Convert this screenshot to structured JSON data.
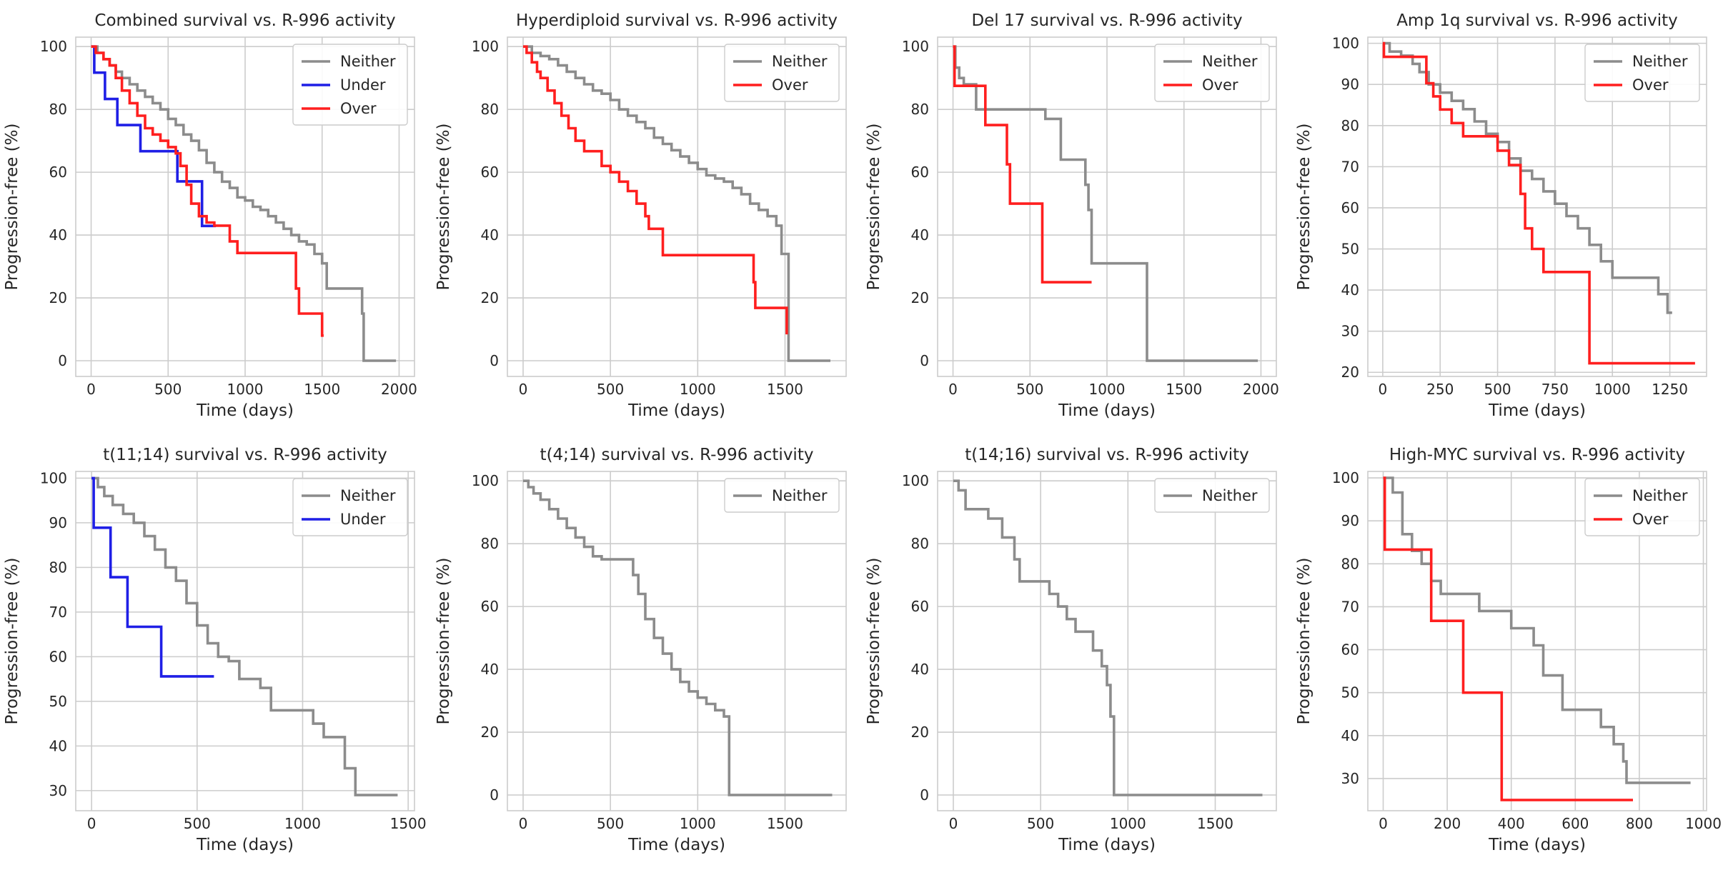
{
  "chart_data": [
    {
      "type": "line",
      "title": "Combined survival vs. R-996 activity",
      "xlabel": "Time (days)",
      "ylabel": "Progression-free (%)",
      "xlim": [
        -100,
        2100
      ],
      "ylim": [
        -5,
        103
      ],
      "xticks": [
        0,
        500,
        1000,
        1500,
        2000
      ],
      "yticks": [
        0,
        20,
        40,
        60,
        80,
        100
      ],
      "legend_position": "top-right",
      "series": [
        {
          "name": "Neither",
          "color": "#8c8c8c",
          "x": [
            0,
            40,
            80,
            120,
            160,
            200,
            250,
            300,
            350,
            400,
            450,
            500,
            550,
            600,
            650,
            700,
            750,
            800,
            850,
            900,
            950,
            1000,
            1050,
            1100,
            1150,
            1200,
            1250,
            1300,
            1350,
            1400,
            1450,
            1500,
            1530,
            1700,
            1760,
            1770,
            1980
          ],
          "y": [
            100,
            98,
            96,
            94,
            92,
            90,
            88,
            86,
            84,
            82,
            80,
            77,
            75,
            72,
            70,
            67,
            63,
            60,
            57,
            55,
            52,
            51,
            49,
            48,
            46,
            44,
            42,
            40,
            38,
            37,
            34,
            31,
            23,
            23,
            15,
            0,
            0
          ]
        },
        {
          "name": "Under",
          "color": "#1f1fe6",
          "x": [
            0,
            20,
            90,
            170,
            320,
            560,
            580,
            610,
            720,
            810
          ],
          "y": [
            100,
            91.7,
            83.3,
            75,
            66.7,
            57.1,
            57.1,
            57.1,
            42.9,
            42.9
          ]
        },
        {
          "name": "Over",
          "color": "#ff1f1f",
          "x": [
            0,
            30,
            80,
            120,
            160,
            200,
            250,
            300,
            350,
            400,
            450,
            500,
            550,
            580,
            620,
            650,
            700,
            750,
            800,
            850,
            900,
            950,
            1330,
            1350,
            1400,
            1500,
            1510
          ],
          "y": [
            100,
            98,
            96,
            94,
            90,
            86,
            82,
            78,
            74,
            72,
            70,
            68,
            66,
            62,
            56,
            50,
            46,
            44,
            43,
            43,
            38,
            34.3,
            23,
            15,
            15,
            8,
            8
          ]
        }
      ]
    },
    {
      "type": "line",
      "title": "Hyperdiploid survival vs. R-996 activity",
      "xlabel": "Time (days)",
      "ylabel": "Progression-free (%)",
      "xlim": [
        -90,
        1850
      ],
      "ylim": [
        -5,
        103
      ],
      "xticks": [
        0,
        500,
        1000,
        1500
      ],
      "yticks": [
        0,
        20,
        40,
        60,
        80,
        100
      ],
      "legend_position": "top-right",
      "series": [
        {
          "name": "Neither",
          "color": "#8c8c8c",
          "x": [
            0,
            50,
            100,
            150,
            200,
            250,
            300,
            350,
            400,
            450,
            500,
            550,
            600,
            650,
            700,
            750,
            800,
            850,
            900,
            950,
            1000,
            1050,
            1100,
            1150,
            1200,
            1250,
            1300,
            1350,
            1400,
            1450,
            1480,
            1500,
            1520,
            1760
          ],
          "y": [
            100,
            98,
            97,
            96,
            94,
            92,
            90,
            88,
            86,
            85,
            83,
            80,
            78,
            76,
            74,
            71,
            69,
            67,
            65,
            63,
            61,
            59,
            58,
            57,
            55,
            53,
            50,
            48,
            46,
            43,
            34,
            34,
            0,
            0
          ]
        },
        {
          "name": "Over",
          "color": "#ff1f1f",
          "x": [
            0,
            20,
            50,
            80,
            100,
            140,
            180,
            220,
            260,
            300,
            350,
            400,
            450,
            500,
            550,
            600,
            650,
            700,
            720,
            800,
            1320,
            1330,
            1500,
            1510
          ],
          "y": [
            100,
            98,
            95,
            92,
            90,
            86,
            82,
            78,
            74,
            70,
            66.7,
            66.7,
            62,
            60,
            57,
            54,
            50,
            46,
            42,
            33.6,
            25,
            16.8,
            16.8,
            8.4
          ]
        }
      ]
    },
    {
      "type": "line",
      "title": "Del 17 survival vs. R-996 activity",
      "xlabel": "Time (days)",
      "ylabel": "Progression-free (%)",
      "xlim": [
        -100,
        2100
      ],
      "ylim": [
        -5,
        103
      ],
      "xticks": [
        0,
        500,
        1000,
        1500,
        2000
      ],
      "yticks": [
        0,
        20,
        40,
        60,
        80,
        100
      ],
      "legend_position": "top-right",
      "series": [
        {
          "name": "Neither",
          "color": "#8c8c8c",
          "x": [
            0,
            15,
            40,
            70,
            150,
            570,
            600,
            700,
            860,
            880,
            900,
            1260,
            1980
          ],
          "y": [
            100,
            93.3,
            90,
            88,
            80,
            80,
            77,
            64,
            56,
            48,
            31,
            0,
            0
          ]
        },
        {
          "name": "Over",
          "color": "#ff1f1f",
          "x": [
            0,
            10,
            210,
            350,
            370,
            580,
            900
          ],
          "y": [
            100,
            87.5,
            75,
            62.5,
            50,
            25,
            25
          ]
        }
      ]
    },
    {
      "type": "line",
      "title": "Amp 1q survival vs. R-996 activity",
      "xlabel": "Time (days)",
      "ylabel": "Progression-free (%)",
      "xlim": [
        -65,
        1410
      ],
      "ylim": [
        19,
        101.5
      ],
      "xticks": [
        0,
        250,
        500,
        750,
        1000,
        1250
      ],
      "yticks": [
        20,
        30,
        40,
        50,
        60,
        70,
        80,
        90,
        100
      ],
      "legend_position": "top-right",
      "series": [
        {
          "name": "Neither",
          "color": "#8c8c8c",
          "x": [
            0,
            30,
            80,
            130,
            160,
            200,
            250,
            300,
            350,
            400,
            450,
            500,
            550,
            600,
            650,
            700,
            750,
            800,
            850,
            900,
            950,
            1000,
            1150,
            1200,
            1240,
            1260
          ],
          "y": [
            100,
            98,
            97,
            95,
            93,
            90,
            88,
            86,
            84,
            81,
            78,
            76,
            72,
            69,
            67,
            64,
            61,
            58,
            55,
            51,
            47,
            43,
            43,
            39,
            34.5,
            34.5
          ]
        },
        {
          "name": "Over",
          "color": "#ff1f1f",
          "x": [
            0,
            5,
            150,
            190,
            220,
            250,
            300,
            350,
            450,
            500,
            550,
            600,
            620,
            650,
            700,
            900,
            1360
          ],
          "y": [
            100,
            96.7,
            96.7,
            90.3,
            87.1,
            83.9,
            80.6,
            77.4,
            77.4,
            73.9,
            70.4,
            63.4,
            55,
            50,
            44.4,
            22.2,
            22.2
          ]
        }
      ]
    },
    {
      "type": "line",
      "title": "t(11;14) survival vs. R-996 activity",
      "xlabel": "Time (days)",
      "ylabel": "Progression-free (%)",
      "xlim": [
        -75,
        1530
      ],
      "ylim": [
        25.5,
        101.5
      ],
      "xticks": [
        0,
        500,
        1000,
        1500
      ],
      "yticks": [
        30,
        40,
        50,
        60,
        70,
        80,
        90,
        100
      ],
      "legend_position": "top-right",
      "series": [
        {
          "name": "Neither",
          "color": "#8c8c8c",
          "x": [
            0,
            30,
            60,
            100,
            150,
            200,
            250,
            300,
            350,
            400,
            450,
            500,
            550,
            600,
            650,
            700,
            800,
            850,
            1050,
            1100,
            1200,
            1250,
            1450
          ],
          "y": [
            100,
            98,
            96,
            94,
            92,
            90,
            87,
            84,
            80,
            77,
            72,
            67,
            63,
            60,
            59,
            55,
            53,
            48,
            45,
            42,
            35,
            29,
            29
          ]
        },
        {
          "name": "Under",
          "color": "#1f1fe6",
          "x": [
            0,
            10,
            90,
            170,
            330,
            580
          ],
          "y": [
            100,
            88.9,
            77.8,
            66.7,
            55.6,
            55.6
          ]
        }
      ]
    },
    {
      "type": "line",
      "title": "t(4;14) survival vs. R-996 activity",
      "xlabel": "Time (days)",
      "ylabel": "Progression-free (%)",
      "xlim": [
        -90,
        1850
      ],
      "ylim": [
        -5,
        103
      ],
      "xticks": [
        0,
        500,
        1000,
        1500
      ],
      "yticks": [
        0,
        20,
        40,
        60,
        80,
        100
      ],
      "legend_position": "top-right",
      "series": [
        {
          "name": "Neither",
          "color": "#8c8c8c",
          "x": [
            0,
            30,
            60,
            100,
            150,
            200,
            250,
            300,
            350,
            400,
            450,
            500,
            600,
            630,
            660,
            700,
            750,
            800,
            850,
            900,
            950,
            1000,
            1050,
            1100,
            1150,
            1180,
            1770
          ],
          "y": [
            100,
            98,
            96,
            94,
            91,
            88,
            85,
            82,
            79,
            76,
            75,
            75,
            75,
            70,
            64,
            56,
            50,
            45,
            40,
            36,
            33,
            31,
            29,
            27,
            25,
            0,
            0
          ]
        }
      ]
    },
    {
      "type": "line",
      "title": "t(14;16) survival vs. R-996 activity",
      "xlabel": "Time (days)",
      "ylabel": "Progression-free (%)",
      "xlim": [
        -90,
        1850
      ],
      "ylim": [
        -5,
        103
      ],
      "xticks": [
        0,
        500,
        1000,
        1500
      ],
      "yticks": [
        0,
        20,
        40,
        60,
        80,
        100
      ],
      "legend_position": "top-right",
      "series": [
        {
          "name": "Neither",
          "color": "#8c8c8c",
          "x": [
            0,
            30,
            70,
            200,
            280,
            350,
            380,
            550,
            600,
            650,
            700,
            800,
            850,
            880,
            900,
            920,
            1770
          ],
          "y": [
            100,
            97,
            91,
            88,
            82,
            75,
            68,
            64,
            60,
            56,
            52,
            46,
            41,
            35,
            25,
            0,
            0
          ]
        }
      ]
    },
    {
      "type": "line",
      "title": "High-MYC survival vs. R-996 activity",
      "xlabel": "Time (days)",
      "ylabel": "Progression-free (%)",
      "xlim": [
        -48,
        1010
      ],
      "ylim": [
        22.5,
        101.5
      ],
      "xticks": [
        0,
        200,
        400,
        600,
        800,
        1000
      ],
      "yticks": [
        30,
        40,
        50,
        60,
        70,
        80,
        90,
        100
      ],
      "legend_position": "top-right",
      "series": [
        {
          "name": "Neither",
          "color": "#8c8c8c",
          "x": [
            0,
            30,
            60,
            90,
            120,
            150,
            180,
            300,
            400,
            470,
            500,
            560,
            600,
            680,
            720,
            750,
            760,
            960
          ],
          "y": [
            100,
            96.6,
            86.9,
            83,
            80,
            76,
            73,
            69,
            65,
            61,
            54,
            46,
            46,
            42,
            38,
            34,
            29,
            29
          ]
        },
        {
          "name": "Over",
          "color": "#ff1f1f",
          "x": [
            0,
            5,
            150,
            250,
            370,
            780
          ],
          "y": [
            100,
            83.3,
            66.7,
            50,
            25,
            25
          ]
        }
      ]
    }
  ]
}
